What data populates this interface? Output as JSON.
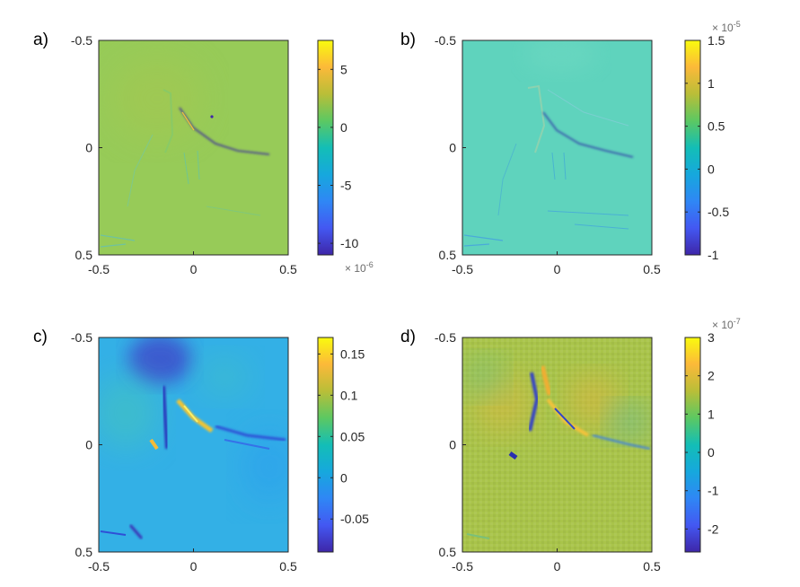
{
  "chart_data": [
    {
      "type": "heatmap",
      "panel_label": "a)",
      "x_ticks": [
        "-0.5",
        "0",
        "0.5"
      ],
      "y_ticks": [
        "-0.5",
        "0",
        "0.5"
      ],
      "xlim": [
        -0.5,
        0.5
      ],
      "ylim": [
        -0.5,
        0.5
      ],
      "colorbar": {
        "ticks": [
          "5",
          "0",
          "-5",
          "-10"
        ],
        "tick_values": [
          5,
          0,
          -5,
          -10
        ],
        "range": [
          -11,
          7.5
        ],
        "exponent_base": "× 10",
        "exponent_power": "-6",
        "exponent_position": "bottom"
      },
      "background_value": 1.5
    },
    {
      "type": "heatmap",
      "panel_label": "b)",
      "x_ticks": [
        "-0.5",
        "0",
        "0.5"
      ],
      "y_ticks": [
        "-0.5",
        "0",
        "0.5"
      ],
      "xlim": [
        -0.5,
        0.5
      ],
      "ylim": [
        -0.5,
        0.5
      ],
      "colorbar": {
        "ticks": [
          "1.5",
          "1",
          "0.5",
          "0",
          "-0.5",
          "-1"
        ],
        "tick_values": [
          1.5,
          1,
          0.5,
          0,
          -0.5,
          -1
        ],
        "range": [
          -1,
          1.5
        ],
        "exponent_base": "× 10",
        "exponent_power": "-5",
        "exponent_position": "top"
      },
      "background_value": 0.1
    },
    {
      "type": "heatmap",
      "panel_label": "c)",
      "x_ticks": [
        "-0.5",
        "0",
        "0.5"
      ],
      "y_ticks": [
        "-0.5",
        "0",
        "0.5"
      ],
      "xlim": [
        -0.5,
        0.5
      ],
      "ylim": [
        -0.5,
        0.5
      ],
      "colorbar": {
        "ticks": [
          "0.15",
          "0.1",
          "0.05",
          "0",
          "-0.05"
        ],
        "tick_values": [
          0.15,
          0.1,
          0.05,
          0,
          -0.05
        ],
        "range": [
          -0.09,
          0.17
        ],
        "exponent_base": "",
        "exponent_power": "",
        "exponent_position": "none"
      },
      "background_value": -0.02
    },
    {
      "type": "heatmap",
      "panel_label": "d)",
      "x_ticks": [
        "-0.5",
        "0",
        "0.5"
      ],
      "y_ticks": [
        "-0.5",
        "0",
        "0.5"
      ],
      "xlim": [
        -0.5,
        0.5
      ],
      "ylim": [
        -0.5,
        0.5
      ],
      "colorbar": {
        "ticks": [
          "3",
          "2",
          "1",
          "0",
          "-1",
          "-2"
        ],
        "tick_values": [
          3,
          2,
          1,
          0,
          -1,
          -2
        ],
        "range": [
          -2.6,
          3
        ],
        "exponent_base": "× 10",
        "exponent_power": "-7",
        "exponent_position": "top"
      },
      "background_value": 1.0
    }
  ]
}
